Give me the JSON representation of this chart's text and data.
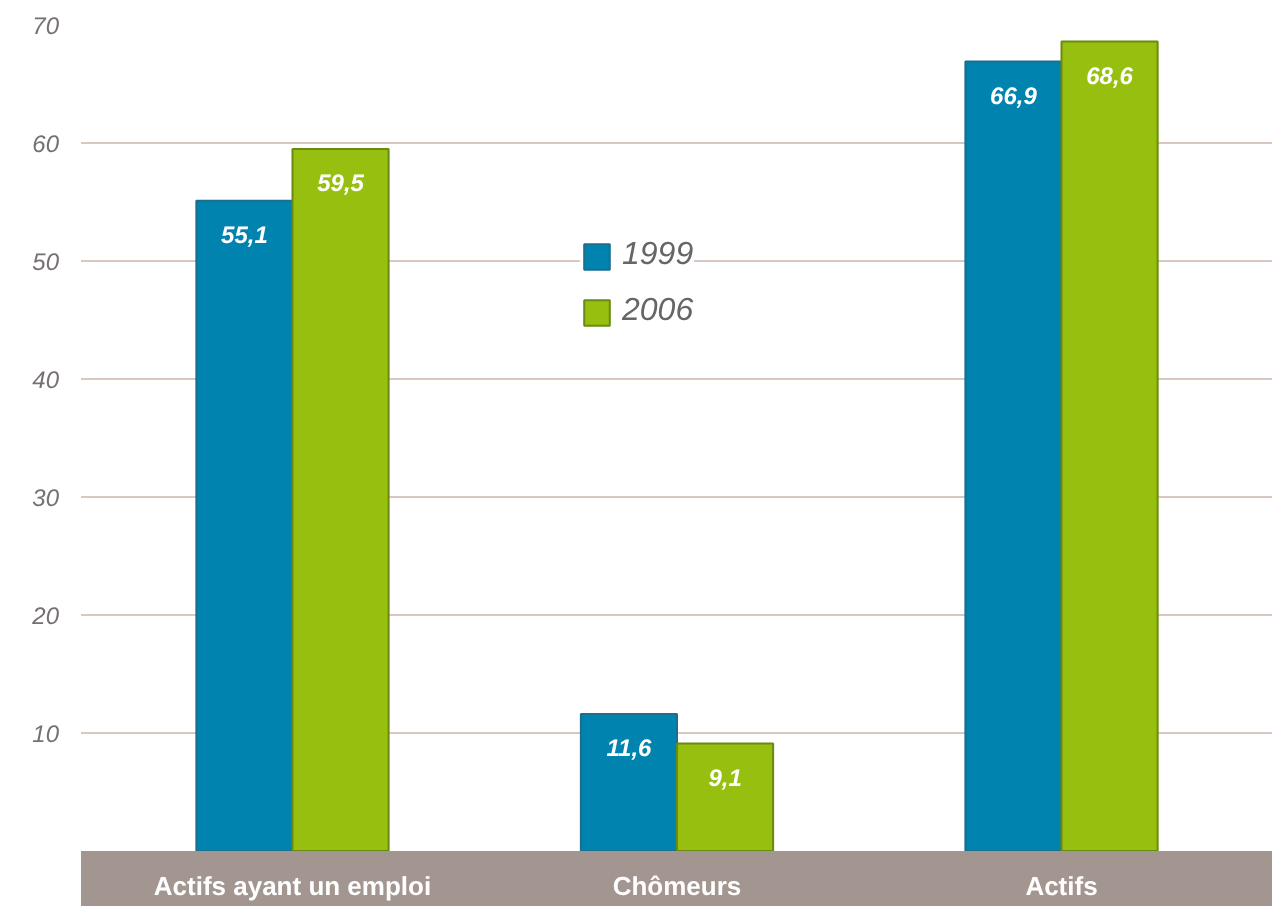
{
  "chart_data": {
    "type": "bar",
    "categories": [
      "Actifs ayant un emploi",
      "Chômeurs",
      "Actifs"
    ],
    "series": [
      {
        "name": "1999",
        "color": "#0083ae",
        "values": [
          55.1,
          11.6,
          66.9
        ],
        "value_labels": [
          "55,1",
          "11,6",
          "66,9"
        ]
      },
      {
        "name": "2006",
        "color": "#97bf0f",
        "values": [
          59.5,
          9.1,
          68.6
        ],
        "value_labels": [
          "59,5",
          "9,1",
          "68,6"
        ]
      }
    ],
    "ylim": [
      0,
      70
    ],
    "yticks": [
      10,
      20,
      30,
      40,
      50,
      60,
      70
    ],
    "grid": "y",
    "legend": "top"
  }
}
